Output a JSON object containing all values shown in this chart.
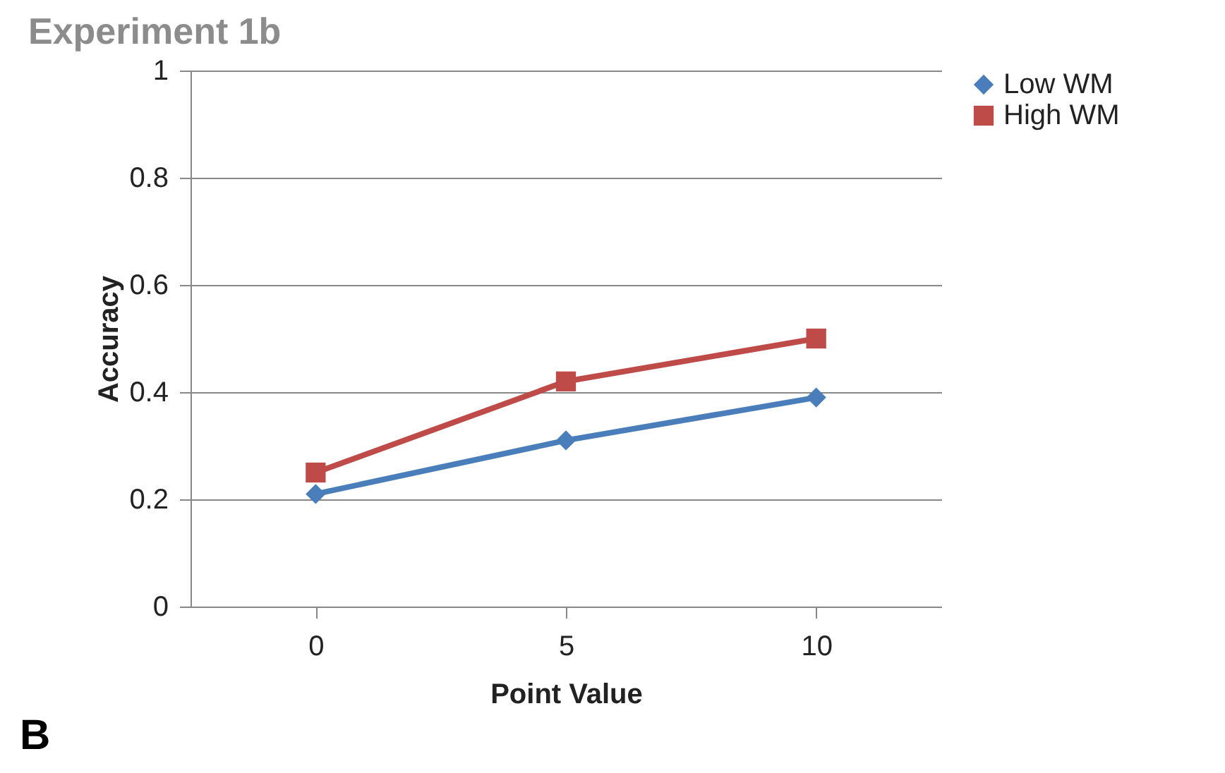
{
  "chart_data": {
    "type": "line",
    "title": "Experiment 1b",
    "xlabel": "Point Value",
    "ylabel": "Accuracy",
    "categories": [
      "0",
      "5",
      "10"
    ],
    "series": [
      {
        "name": "Low WM",
        "color": "#4a7ebb",
        "marker": "diamond",
        "values": [
          0.21,
          0.31,
          0.39
        ]
      },
      {
        "name": "High WM",
        "color": "#be4b48",
        "marker": "square",
        "values": [
          0.25,
          0.42,
          0.5
        ]
      }
    ],
    "ylim": [
      0,
      1
    ],
    "yticks": [
      0,
      0.2,
      0.4,
      0.6,
      0.8,
      1
    ],
    "grid": "y",
    "legend": "right",
    "annotations": [
      "B"
    ]
  }
}
